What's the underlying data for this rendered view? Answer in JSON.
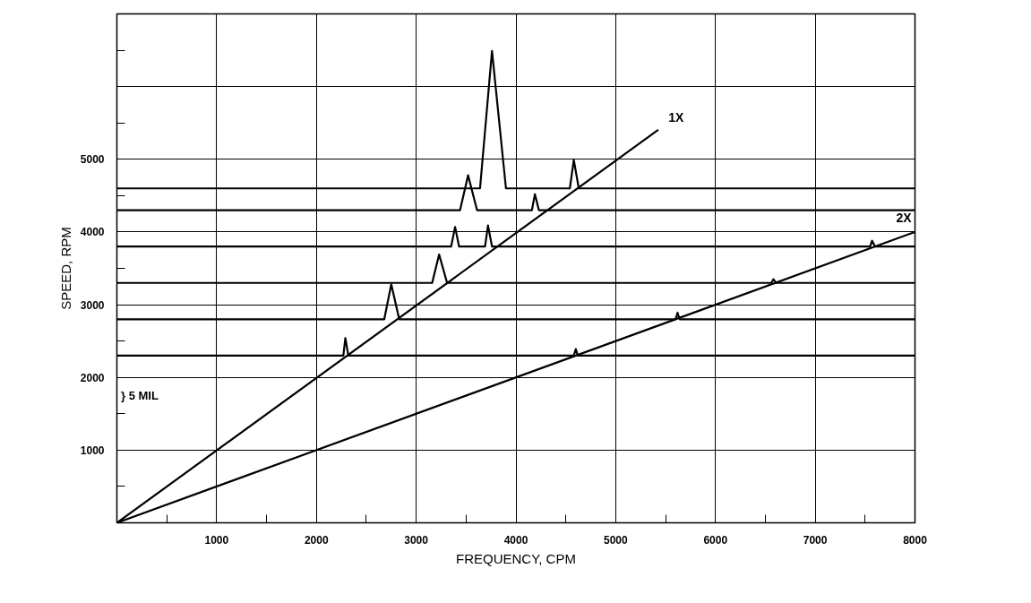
{
  "chart_data": {
    "type": "line",
    "xlabel": "FREQUENCY, CPM",
    "ylabel": "SPEED, RPM",
    "xlim": [
      0,
      8000
    ],
    "ylim": [
      0,
      7000
    ],
    "xticks": [
      {
        "value": 500,
        "label": null
      },
      1000,
      {
        "value": 1500,
        "label": null
      },
      2000,
      {
        "value": 2500,
        "label": null
      },
      3000,
      {
        "value": 3500,
        "label": null
      },
      4000,
      {
        "value": 4500,
        "label": null
      },
      5000,
      {
        "value": 5500,
        "label": null
      },
      6000,
      {
        "value": 6500,
        "label": null
      },
      7000,
      {
        "value": 7500,
        "label": null
      },
      8000
    ],
    "yticks": [
      {
        "value": 500,
        "label": null
      },
      1000,
      {
        "value": 1500,
        "label": null
      },
      2000,
      {
        "value": 2500,
        "label": null
      },
      3000,
      {
        "value": 3500,
        "label": null
      },
      4000,
      {
        "value": 4500,
        "label": null
      },
      5000,
      {
        "value": 5500,
        "label": null
      },
      {
        "value": 6000,
        "label": null
      },
      {
        "value": 6500,
        "label": null
      }
    ],
    "grid": true,
    "series": [
      {
        "name": "1X",
        "color": "#000000",
        "x": [
          0,
          5420
        ],
        "values": [
          0,
          5400
        ]
      },
      {
        "name": "2X",
        "color": "#000000",
        "x": [
          0,
          8000
        ],
        "values": [
          0,
          4000
        ]
      },
      {
        "color": "#000000",
        "x": [
          0,
          2270,
          2290,
          2320,
          4580,
          4600,
          4620,
          8000
        ],
        "values": [
          2300,
          2300,
          2540,
          2300,
          2300,
          2390,
          2300,
          2300
        ]
      },
      {
        "color": "#000000",
        "x": [
          0,
          2680,
          2750,
          2830,
          5600,
          5620,
          5640,
          8000
        ],
        "values": [
          2800,
          2800,
          3280,
          2800,
          2800,
          2890,
          2800,
          2800
        ]
      },
      {
        "color": "#000000",
        "x": [
          0,
          3160,
          3230,
          3310,
          6560,
          6580,
          6610,
          8000
        ],
        "values": [
          3300,
          3300,
          3690,
          3300,
          3300,
          3350,
          3300,
          3300
        ]
      },
      {
        "color": "#000000",
        "x": [
          0,
          3350,
          3390,
          3430,
          3690,
          3720,
          3760,
          7550,
          7570,
          7600,
          8000
        ],
        "values": [
          3800,
          3800,
          4070,
          3800,
          3800,
          4090,
          3800,
          3800,
          3880,
          3800,
          3800
        ]
      },
      {
        "color": "#000000",
        "x": [
          0,
          3440,
          3520,
          3610,
          4160,
          4190,
          4230,
          8000
        ],
        "values": [
          4300,
          4300,
          4780,
          4300,
          4300,
          4520,
          4300,
          4300
        ]
      },
      {
        "color": "#000000",
        "x": [
          0,
          3640,
          3760,
          3900,
          4540,
          4580,
          4630,
          8000
        ],
        "values": [
          4600,
          4600,
          6490,
          4600,
          4600,
          4990,
          4600,
          4600
        ]
      }
    ],
    "annotations": [
      "} 5 MIL"
    ]
  }
}
